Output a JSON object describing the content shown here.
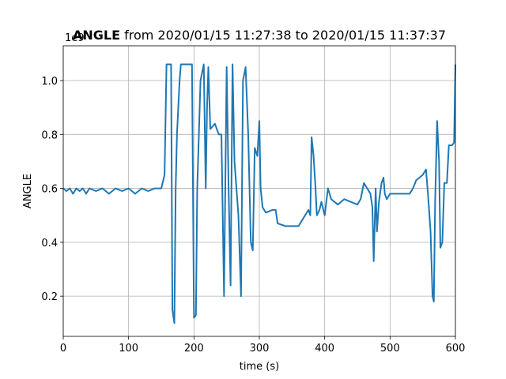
{
  "chart_data": {
    "type": "line",
    "title": {
      "bold": "ANGLE",
      "text": "from 2020/01/15 11:27:38 to 2020/01/15 11:37:37"
    },
    "xlabel": "time (s)",
    "ylabel": "ANGLE",
    "y_offset_label": "1e9",
    "color": "#1f77b4",
    "grid": true,
    "xlim": [
      0,
      600
    ],
    "xticks": [
      0,
      100,
      200,
      300,
      400,
      500,
      600
    ],
    "ylim": [
      0.051,
      1.129
    ],
    "yticks": [
      0.2,
      0.4,
      0.6,
      0.8,
      {
        "value": 1,
        "label": "1.0"
      }
    ],
    "x": [
      0,
      5,
      10,
      15,
      20,
      25,
      30,
      35,
      40,
      50,
      60,
      70,
      80,
      90,
      100,
      110,
      120,
      130,
      140,
      150,
      155,
      158,
      165,
      167,
      170,
      172,
      174,
      178,
      180,
      197,
      200,
      203,
      205,
      210,
      215,
      218,
      220,
      222,
      225,
      232,
      238,
      242,
      246,
      250,
      253,
      256,
      259,
      262,
      268,
      272,
      275,
      279,
      283,
      287,
      290,
      293,
      297,
      300,
      302,
      305,
      310,
      320,
      325,
      328,
      340,
      360,
      365,
      370,
      375,
      378,
      380,
      383,
      386,
      388,
      392,
      395,
      400,
      405,
      410,
      420,
      430,
      440,
      450,
      455,
      460,
      465,
      470,
      473,
      475,
      478,
      480,
      483,
      487,
      490,
      492,
      495,
      500,
      510,
      520,
      530,
      535,
      540,
      550,
      555,
      558,
      562,
      565,
      567,
      569,
      572,
      575,
      577,
      580,
      583,
      587,
      590,
      595,
      598,
      600
    ],
    "values": [
      0.6,
      0.59,
      0.6,
      0.58,
      0.6,
      0.59,
      0.6,
      0.58,
      0.6,
      0.59,
      0.6,
      0.58,
      0.6,
      0.59,
      0.6,
      0.58,
      0.6,
      0.59,
      0.6,
      0.6,
      0.65,
      1.06,
      1.06,
      0.15,
      0.1,
      0.6,
      0.8,
      1.0,
      1.06,
      1.06,
      0.12,
      0.13,
      0.6,
      1.0,
      1.06,
      0.6,
      0.9,
      1.05,
      0.82,
      0.84,
      0.8,
      0.8,
      0.2,
      1.05,
      0.6,
      0.24,
      1.06,
      0.7,
      0.5,
      0.2,
      1.0,
      1.05,
      0.8,
      0.4,
      0.37,
      0.75,
      0.72,
      0.85,
      0.6,
      0.53,
      0.51,
      0.52,
      0.52,
      0.47,
      0.46,
      0.46,
      0.48,
      0.5,
      0.52,
      0.5,
      0.79,
      0.72,
      0.6,
      0.5,
      0.52,
      0.55,
      0.5,
      0.6,
      0.56,
      0.54,
      0.56,
      0.55,
      0.54,
      0.56,
      0.62,
      0.6,
      0.58,
      0.53,
      0.33,
      0.6,
      0.44,
      0.55,
      0.62,
      0.64,
      0.58,
      0.56,
      0.58,
      0.58,
      0.58,
      0.58,
      0.6,
      0.63,
      0.65,
      0.67,
      0.58,
      0.44,
      0.2,
      0.18,
      0.55,
      0.85,
      0.7,
      0.38,
      0.4,
      0.62,
      0.62,
      0.76,
      0.76,
      0.77,
      1.06
    ]
  }
}
